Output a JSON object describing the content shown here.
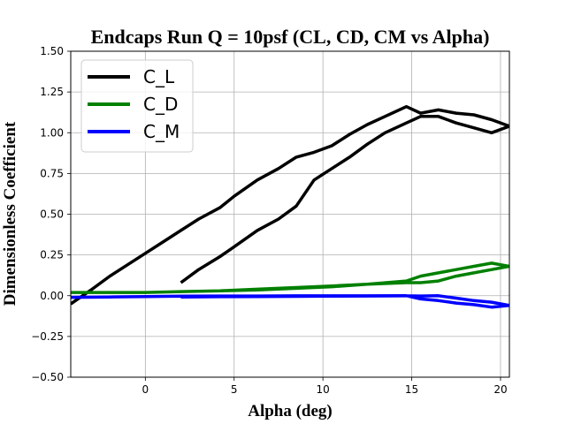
{
  "chart_data": {
    "type": "line",
    "title": "Endcaps Run Q = 10psf (CL, CD, CM vs Alpha)",
    "xlabel": "Alpha (deg)",
    "ylabel": "Dimensionless Coefficient",
    "xlim": [
      -4.2,
      20.5
    ],
    "ylim": [
      -0.5,
      1.5
    ],
    "xticks": [
      0,
      5,
      10,
      15,
      20
    ],
    "yticks": [
      -0.5,
      -0.25,
      0.0,
      0.25,
      0.5,
      0.75,
      1.0,
      1.25,
      1.5
    ],
    "xtick_labels": [
      "0",
      "5",
      "10",
      "15",
      "20"
    ],
    "ytick_labels": [
      "−0.50",
      "−0.25",
      "0.00",
      "0.25",
      "0.50",
      "0.75",
      "1.00",
      "1.25",
      "1.50"
    ],
    "grid": true,
    "legend": "upper-left",
    "series": [
      {
        "name": "C_L",
        "color": "#000000",
        "x": [
          -4.2,
          -3,
          -2,
          -1,
          0,
          1,
          2,
          3,
          4.2,
          5,
          6.3,
          7.5,
          8.5,
          9.5,
          10.5,
          11.5,
          12.5,
          13.5,
          14.7,
          15.5,
          16.5,
          17.5,
          18.5,
          19.5,
          20.5,
          19.5,
          18.5,
          17.5,
          16.5,
          15.5,
          14.7,
          13.5,
          12.5,
          11.5,
          10.5,
          9.5,
          8.5,
          7.5,
          6.3,
          5,
          4.2,
          3,
          2
        ],
        "y": [
          -0.05,
          0.04,
          0.12,
          0.19,
          0.26,
          0.33,
          0.4,
          0.47,
          0.54,
          0.61,
          0.71,
          0.78,
          0.85,
          0.88,
          0.92,
          0.99,
          1.05,
          1.1,
          1.16,
          1.12,
          1.14,
          1.12,
          1.11,
          1.08,
          1.04,
          1.0,
          1.03,
          1.06,
          1.1,
          1.1,
          1.06,
          1.0,
          0.93,
          0.85,
          0.78,
          0.71,
          0.55,
          0.47,
          0.4,
          0.3,
          0.24,
          0.16,
          0.08
        ]
      },
      {
        "name": "C_D",
        "color": "#008000",
        "x": [
          -4.2,
          -2,
          0,
          2,
          4.2,
          6.3,
          8.5,
          10.5,
          12.5,
          14.7,
          15.5,
          16.5,
          17.5,
          18.5,
          19.5,
          20.5,
          19.5,
          18.5,
          17.5,
          16.5,
          15.5,
          14.7,
          12.5,
          10.5,
          8.5,
          6.3,
          4.2,
          2
        ],
        "y": [
          0.02,
          0.02,
          0.02,
          0.025,
          0.03,
          0.04,
          0.05,
          0.06,
          0.07,
          0.09,
          0.12,
          0.14,
          0.16,
          0.18,
          0.2,
          0.18,
          0.16,
          0.14,
          0.12,
          0.09,
          0.08,
          0.08,
          0.07,
          0.055,
          0.045,
          0.035,
          0.03,
          0.025
        ]
      },
      {
        "name": "C_M",
        "color": "#0000ff",
        "x": [
          -4.2,
          -2,
          0,
          2,
          4.2,
          6.3,
          8.5,
          10.5,
          12.5,
          14.7,
          15.5,
          16.5,
          17.5,
          18.5,
          19.5,
          20.5,
          19.5,
          18.5,
          17.5,
          16.5,
          15.5,
          14.7,
          12.5,
          10.5,
          8.5,
          6.3,
          4.2,
          2
        ],
        "y": [
          -0.01,
          -0.008,
          -0.005,
          -0.003,
          -0.002,
          -0.002,
          -0.001,
          -0.001,
          -0.001,
          0.0,
          -0.02,
          -0.03,
          -0.045,
          -0.055,
          -0.07,
          -0.06,
          -0.04,
          -0.03,
          -0.015,
          0.0,
          -0.002,
          -0.001,
          -0.002,
          -0.003,
          -0.004,
          -0.005,
          -0.006,
          -0.008
        ]
      }
    ]
  }
}
